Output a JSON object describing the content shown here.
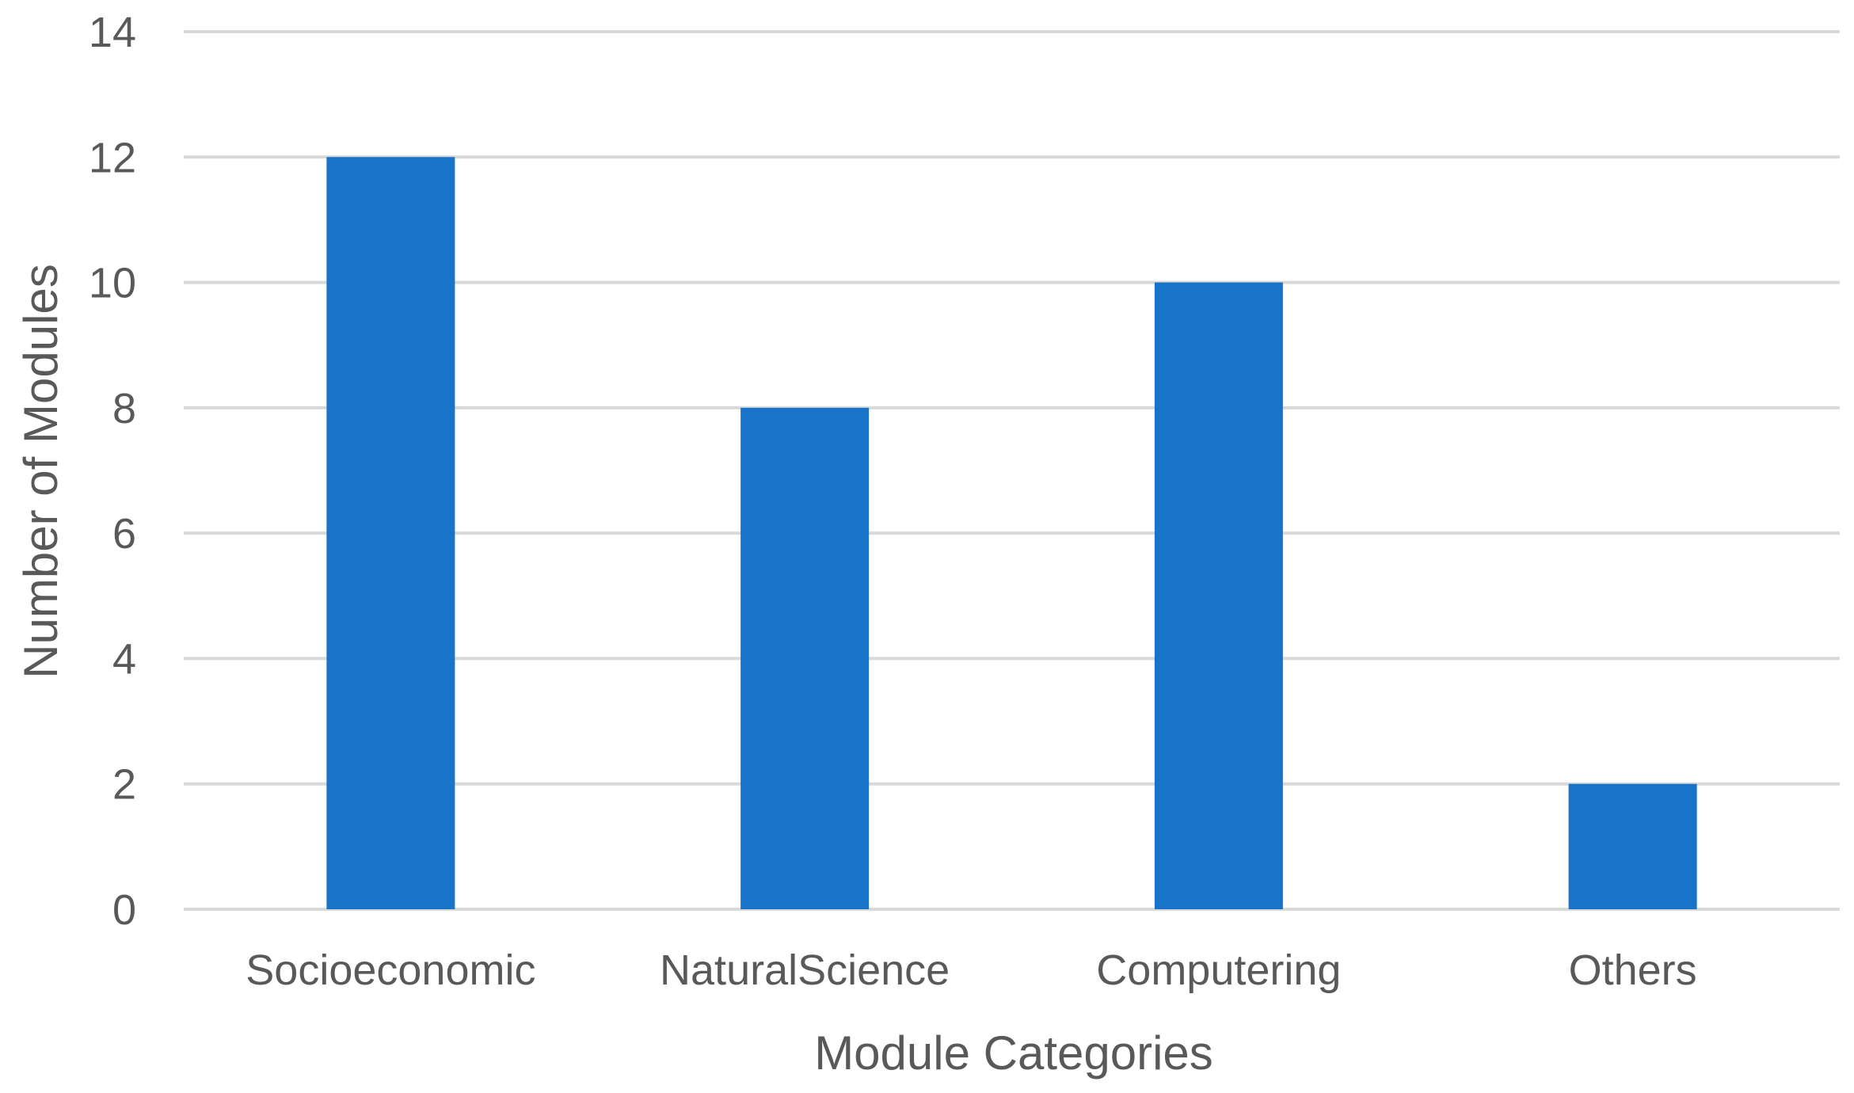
{
  "chart_data": {
    "type": "bar",
    "categories": [
      "Socioeconomic",
      "NaturalScience",
      "Computering",
      "Others"
    ],
    "values": [
      12,
      8,
      10,
      2
    ],
    "title": "",
    "xlabel": "Module Categories",
    "ylabel": "Number of Modules",
    "ylim": [
      0,
      14
    ],
    "yticks": [
      0,
      2,
      4,
      6,
      8,
      10,
      12,
      14
    ],
    "grid": true,
    "legend": "none",
    "bar_color": "#1874c8"
  }
}
